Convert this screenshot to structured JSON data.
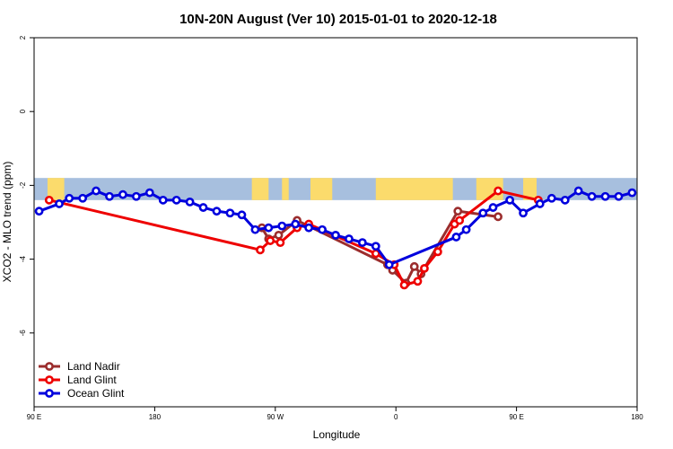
{
  "chart_data": {
    "type": "line",
    "title": "10N-20N August (Ver 10)   2015-01-01 to 2020-12-18",
    "xlabel": "Longitude",
    "ylabel": "XCO2 - MLO trend (ppm)",
    "xlim": [
      0,
      360
    ],
    "ylim": [
      -8,
      2
    ],
    "x_ticks": [
      {
        "value": 0,
        "label": "90 E"
      },
      {
        "value": 72,
        "label": "180"
      },
      {
        "value": 144,
        "label": "90 W"
      },
      {
        "value": 216,
        "label": "0"
      },
      {
        "value": 288,
        "label": "90 E"
      },
      {
        "value": 360,
        "label": "180"
      }
    ],
    "y_ticks": [
      {
        "value": 2,
        "label": "2"
      },
      {
        "value": 0,
        "label": "0"
      },
      {
        "value": -2,
        "label": "-2"
      },
      {
        "value": -4,
        "label": "-4"
      },
      {
        "value": -6,
        "label": "-6"
      }
    ],
    "land_band_y": [
      -2.4,
      -1.8
    ],
    "land_band_colors": {
      "ocean": "#a7bfde",
      "land": "#fbdb6c"
    },
    "land_segments": [
      [
        8,
        18
      ],
      [
        130,
        140
      ],
      [
        148,
        152
      ],
      [
        165,
        178
      ],
      [
        204,
        250
      ],
      [
        264,
        280
      ],
      [
        292,
        300
      ]
    ],
    "legend_position": "bottom-left",
    "series": [
      {
        "name": "Land Nadir",
        "color": "#9b2d2d",
        "x": [
          136,
          140,
          146,
          157,
          211,
          214,
          222,
          227,
          231,
          253,
          277
        ],
        "y": [
          -3.15,
          -3.45,
          -3.35,
          -2.95,
          -4.15,
          -4.3,
          -4.65,
          -4.2,
          -4.4,
          -2.7,
          -2.85
        ]
      },
      {
        "name": "Land Glint",
        "color": "#ee0000",
        "x": [
          9,
          135,
          141,
          147,
          157,
          164,
          204,
          215,
          221,
          229,
          233,
          241,
          251,
          254,
          277,
          301
        ],
        "y": [
          -2.4,
          -3.75,
          -3.5,
          -3.55,
          -3.15,
          -3.05,
          -3.85,
          -4.15,
          -4.7,
          -4.6,
          -4.25,
          -3.8,
          -3.05,
          -2.95,
          -2.15,
          -2.4
        ]
      },
      {
        "name": "Ocean Glint",
        "color": "#0000dd",
        "x": [
          3,
          15,
          21,
          29,
          37,
          45,
          53,
          61,
          69,
          77,
          85,
          93,
          101,
          109,
          117,
          124,
          132,
          140,
          148,
          156,
          164,
          172,
          180,
          188,
          196,
          204,
          212,
          252,
          258,
          268,
          274,
          284,
          292,
          302,
          309,
          317,
          325,
          333,
          341,
          349,
          357
        ],
        "y": [
          -2.7,
          -2.5,
          -2.35,
          -2.35,
          -2.15,
          -2.3,
          -2.25,
          -2.3,
          -2.2,
          -2.4,
          -2.4,
          -2.45,
          -2.6,
          -2.7,
          -2.75,
          -2.8,
          -3.2,
          -3.15,
          -3.1,
          -3.05,
          -3.15,
          -3.2,
          -3.35,
          -3.45,
          -3.55,
          -3.65,
          -4.15,
          -3.4,
          -3.2,
          -2.75,
          -2.6,
          -2.4,
          -2.75,
          -2.5,
          -2.35,
          -2.4,
          -2.15,
          -2.3,
          -2.3,
          -2.3,
          -2.2
        ]
      }
    ]
  }
}
